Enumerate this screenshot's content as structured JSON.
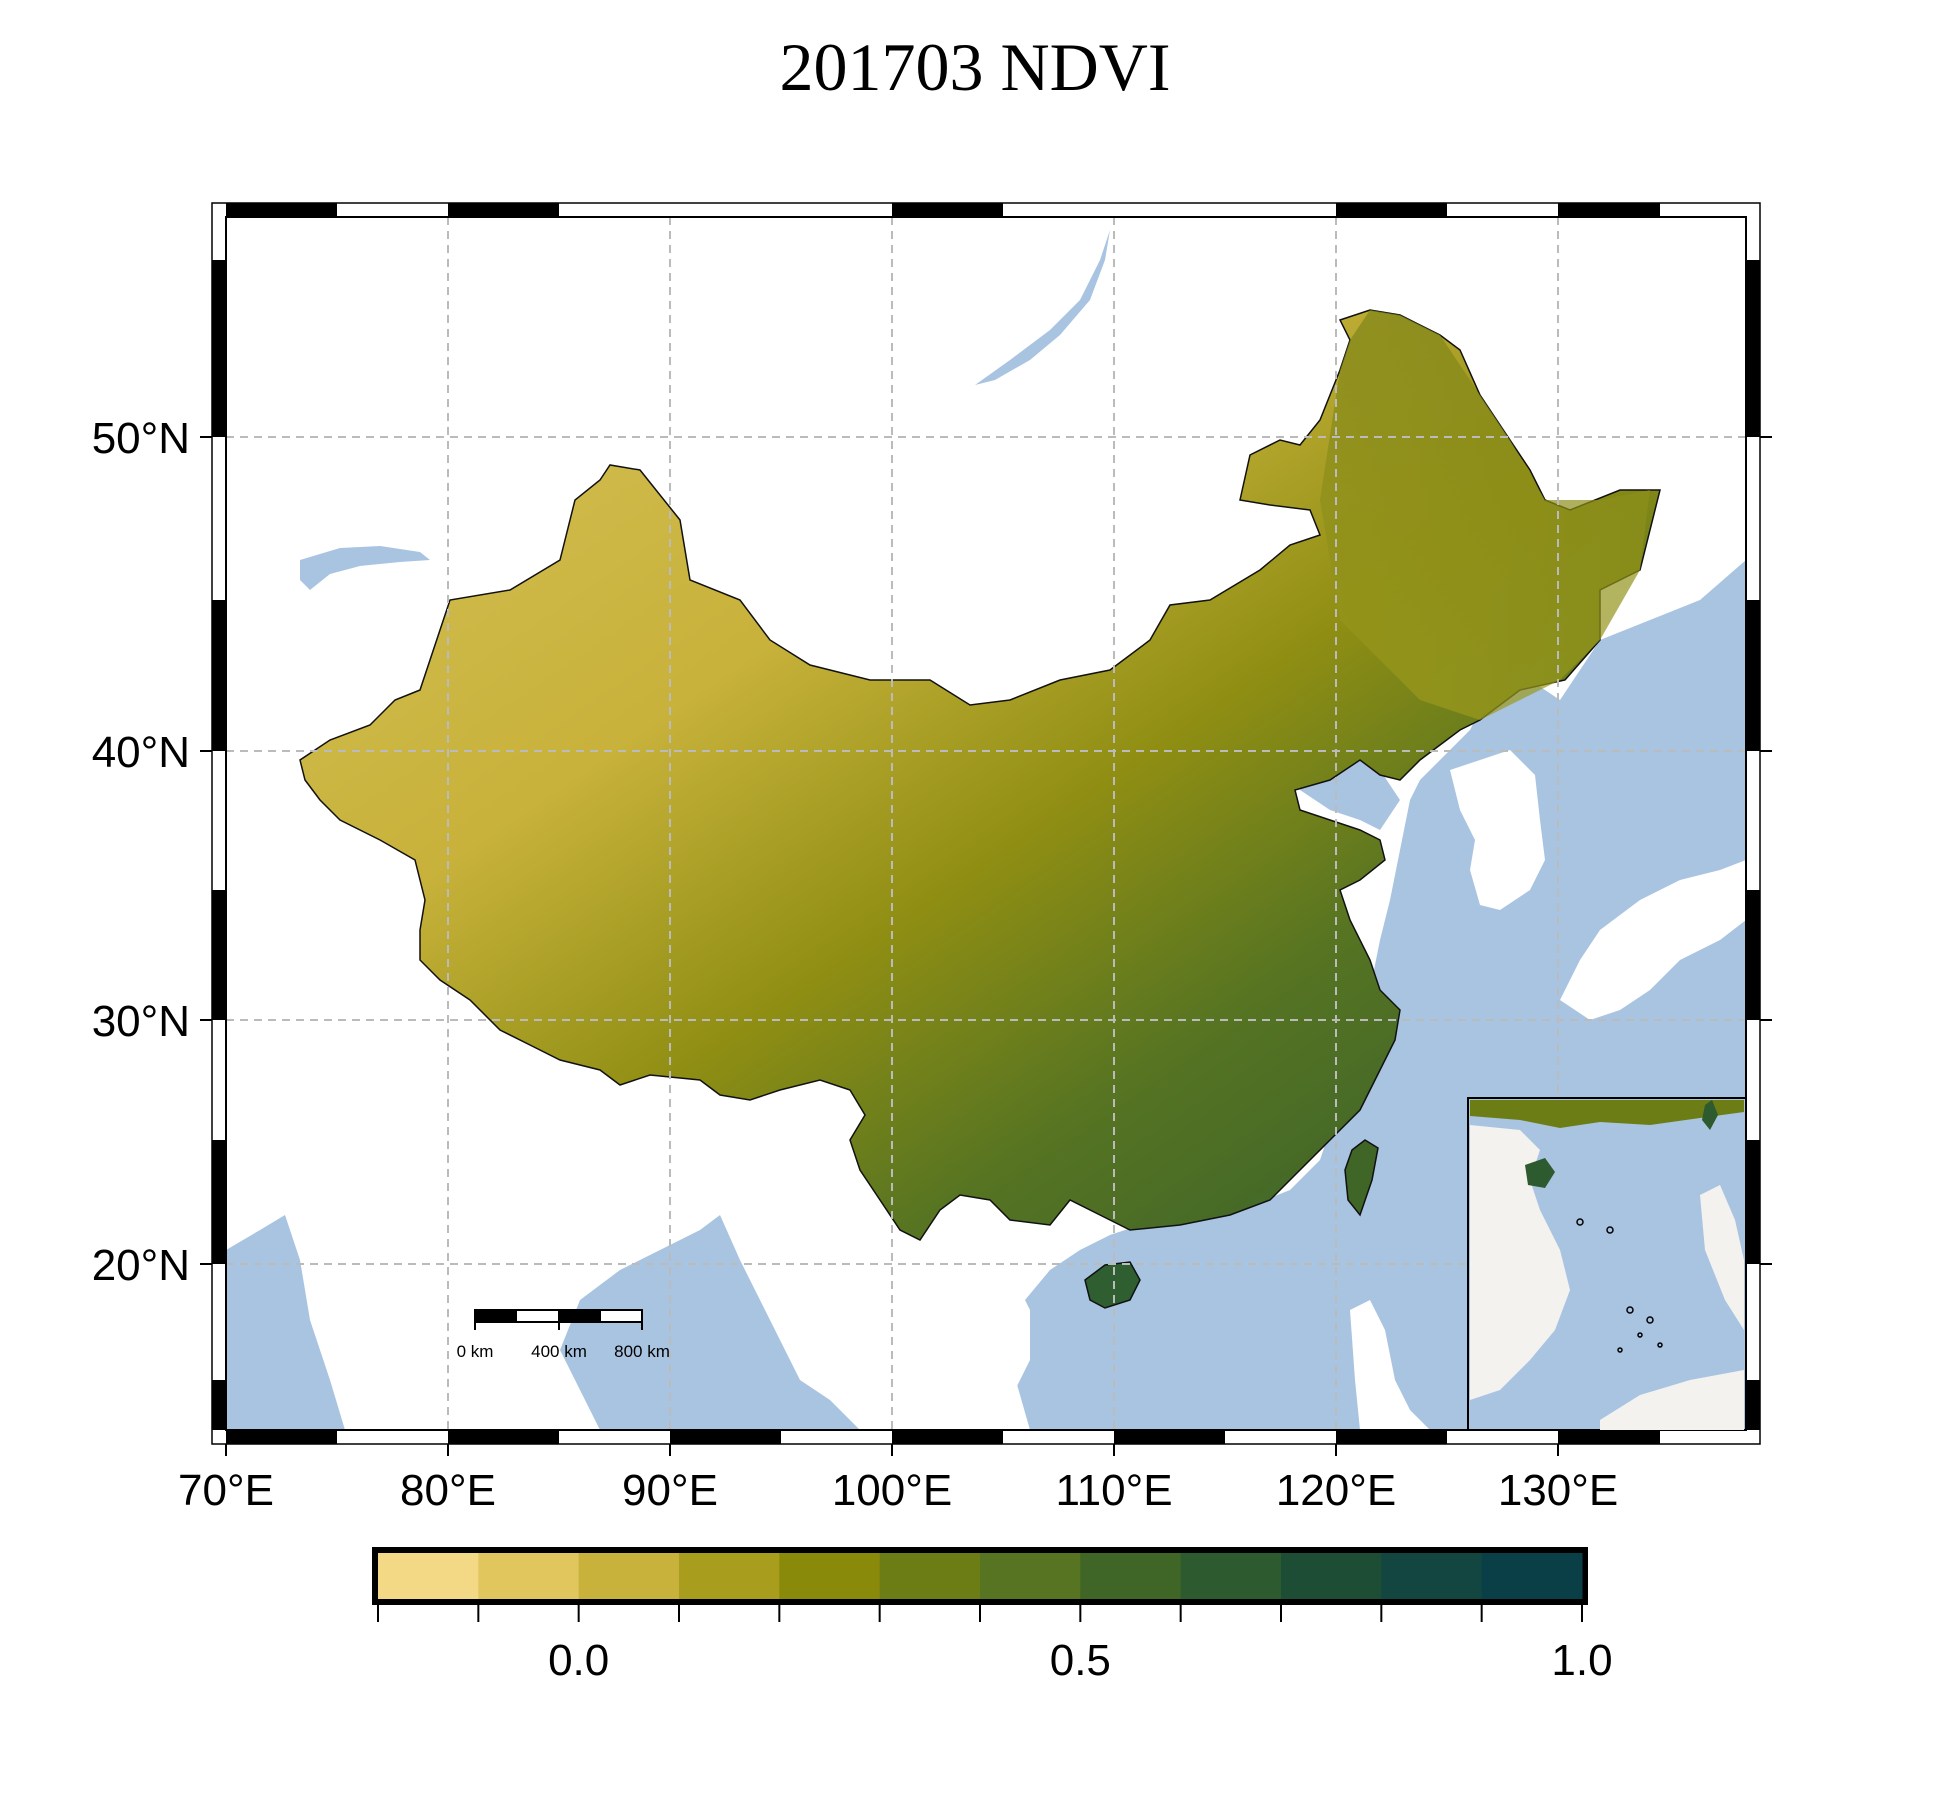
{
  "title": "201703 NDVI",
  "map": {
    "lon_range": [
      69.5,
      138.5
    ],
    "lat_range": [
      13.5,
      57.5
    ],
    "lon_ticks": [
      "70°E",
      "80°E",
      "90°E",
      "100°E",
      "110°E",
      "120°E",
      "130°E"
    ],
    "lat_ticks": [
      "20°N",
      "30°N",
      "40°N",
      "50°N"
    ],
    "gridlines": true,
    "colors": {
      "land_other": "#ffffff",
      "water": "#a9c4e1",
      "inset_land": "#f3f2ef"
    }
  },
  "scale_bar": {
    "labels": [
      "0 km",
      "400 km",
      "800 km"
    ]
  },
  "inset": {
    "description_icon": "south-china-sea-inset"
  },
  "colorbar": {
    "min": -0.2,
    "max": 1.0,
    "step": 0.1,
    "labels": [
      "0.0",
      "0.5",
      "1.0"
    ],
    "colors": [
      "#f3d985",
      "#e1c65d",
      "#c8b23b",
      "#a99d1d",
      "#898a0a",
      "#6d7d15",
      "#567422",
      "#3f6626",
      "#2d5a2e",
      "#1e4d35",
      "#134640",
      "#0a3f48"
    ]
  }
}
